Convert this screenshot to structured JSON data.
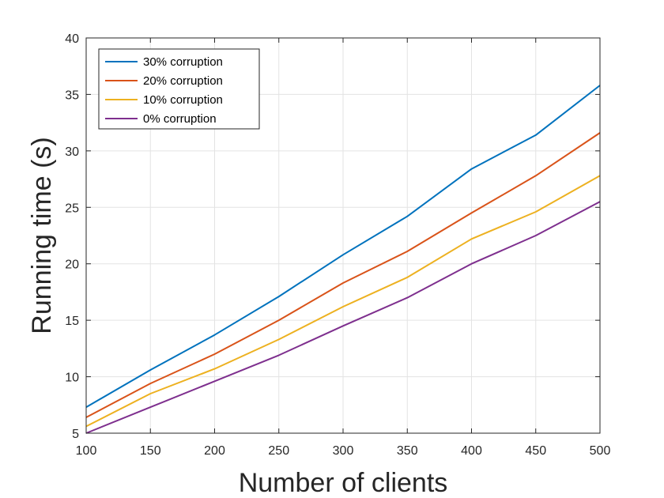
{
  "chart_data": {
    "type": "line",
    "xlabel": "Number of clients",
    "ylabel": "Running time (s)",
    "xlim": [
      100,
      500
    ],
    "ylim": [
      5,
      40
    ],
    "x": [
      100,
      150,
      200,
      250,
      300,
      350,
      400,
      450,
      500
    ],
    "xticks": [
      100,
      150,
      200,
      250,
      300,
      350,
      400,
      450,
      500
    ],
    "yticks": [
      5,
      10,
      15,
      20,
      25,
      30,
      35,
      40
    ],
    "grid": true,
    "legend_position": "top-left",
    "series": [
      {
        "name": "30% corruption",
        "color": "#0072BD",
        "values": [
          7.3,
          10.6,
          13.7,
          17.1,
          20.8,
          24.2,
          28.4,
          31.4,
          35.8
        ]
      },
      {
        "name": "20% corruption",
        "color": "#D95319",
        "values": [
          6.4,
          9.4,
          12.0,
          15.0,
          18.3,
          21.1,
          24.5,
          27.8,
          31.6
        ]
      },
      {
        "name": "10% corruption",
        "color": "#EDB120",
        "values": [
          5.6,
          8.5,
          10.7,
          13.3,
          16.2,
          18.8,
          22.2,
          24.6,
          27.8
        ]
      },
      {
        "name": "0% corruption",
        "color": "#7E2F8E",
        "values": [
          5.0,
          7.3,
          9.6,
          11.9,
          14.5,
          17.0,
          20.0,
          22.5,
          25.5
        ]
      }
    ]
  }
}
